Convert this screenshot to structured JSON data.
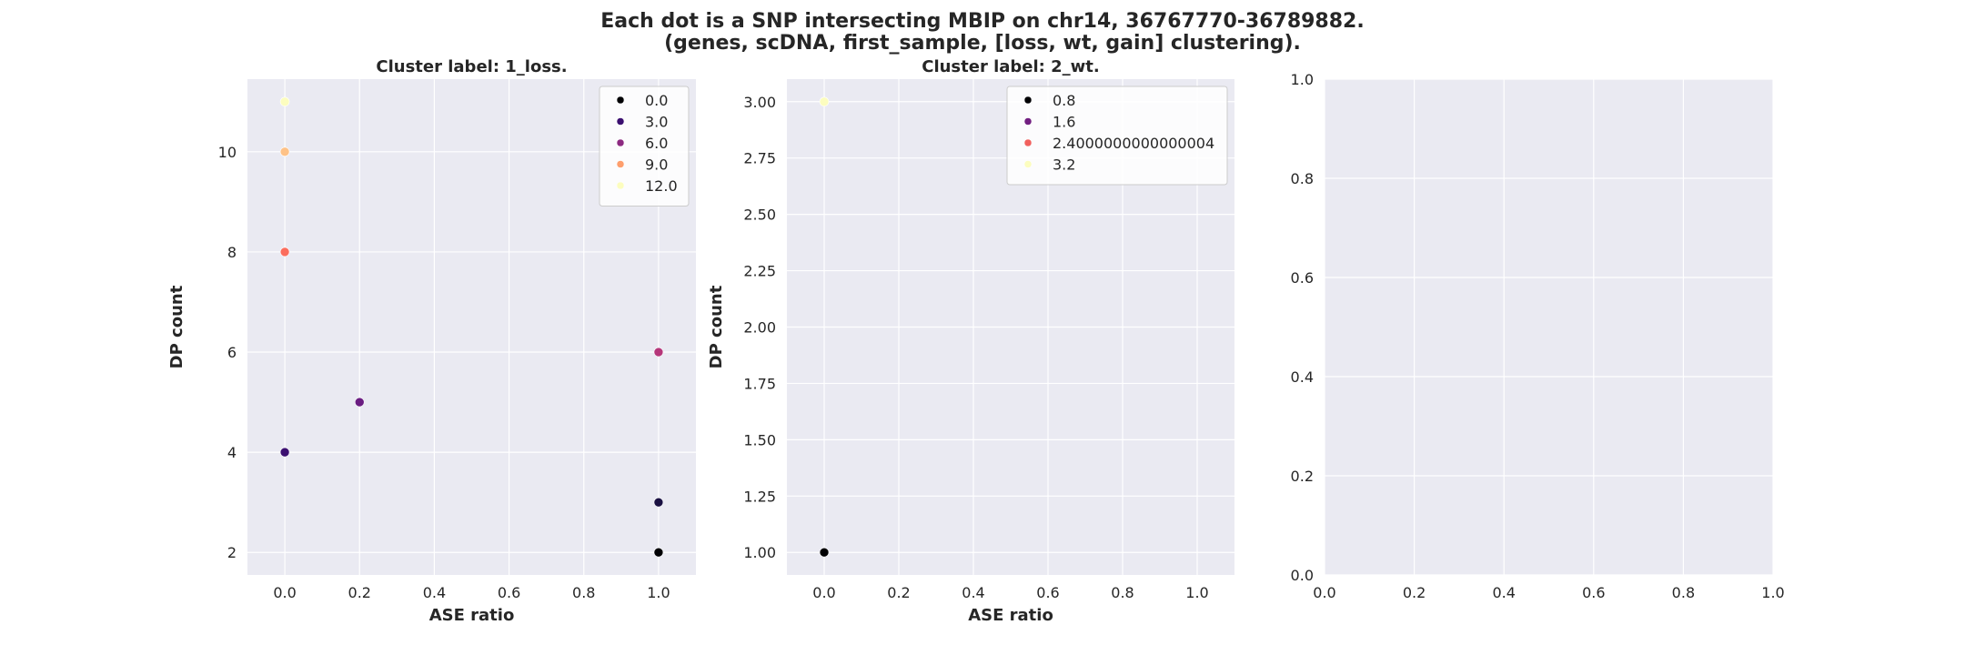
{
  "figure": {
    "title_line1": "Each dot is a SNP intersecting MBIP on chr14, 36767770-36789882.",
    "title_line2": "(genes, scDNA, first_sample, [loss, wt, gain] clustering)."
  },
  "colors": {
    "axes_background": "#eaeaf2",
    "grid": "#ffffff"
  },
  "chart_data": [
    {
      "type": "scatter",
      "title": "Cluster label: 1_loss.",
      "xlabel": "ASE ratio",
      "ylabel": "DP count",
      "xlim": [
        -0.1,
        1.1
      ],
      "ylim": [
        1.55,
        11.45
      ],
      "xticks": [
        "0.0",
        "0.2",
        "0.4",
        "0.6",
        "0.8",
        "1.0"
      ],
      "yticks": [
        "2",
        "4",
        "6",
        "8",
        "10"
      ],
      "grid": true,
      "legend_position": "upper right",
      "legend": [
        {
          "label": "0.0",
          "color": "#000004"
        },
        {
          "label": "3.0",
          "color": "#3b0f70"
        },
        {
          "label": "6.0",
          "color": "#8c2981"
        },
        {
          "label": "9.0",
          "color": "#fe9f6d"
        },
        {
          "label": "12.0",
          "color": "#fcfdbf"
        }
      ],
      "points": [
        {
          "x": 0.0,
          "y": 11,
          "color": "#fcfdbf"
        },
        {
          "x": 0.0,
          "y": 10,
          "color": "#fec287"
        },
        {
          "x": 0.0,
          "y": 8,
          "color": "#fb6d5d"
        },
        {
          "x": 0.0,
          "y": 4,
          "color": "#3b0f70"
        },
        {
          "x": 0.2,
          "y": 5,
          "color": "#6a1c81"
        },
        {
          "x": 1.0,
          "y": 6,
          "color": "#b5367a"
        },
        {
          "x": 1.0,
          "y": 3,
          "color": "#1a1042"
        },
        {
          "x": 1.0,
          "y": 2,
          "color": "#000004"
        }
      ]
    },
    {
      "type": "scatter",
      "title": "Cluster label: 2_wt.",
      "xlabel": "ASE ratio",
      "ylabel": "DP count",
      "xlim": [
        -0.1,
        1.1
      ],
      "ylim": [
        0.9,
        3.1
      ],
      "xticks": [
        "0.0",
        "0.2",
        "0.4",
        "0.6",
        "0.8",
        "1.0"
      ],
      "yticks": [
        "1.00",
        "1.25",
        "1.50",
        "1.75",
        "2.00",
        "2.25",
        "2.50",
        "2.75",
        "3.00"
      ],
      "grid": true,
      "legend_position": "upper right",
      "legend": [
        {
          "label": "0.8",
          "color": "#000004"
        },
        {
          "label": "1.6",
          "color": "#721f81"
        },
        {
          "label": "2.4000000000000004",
          "color": "#f1605d"
        },
        {
          "label": "3.2",
          "color": "#fcfdbf"
        }
      ],
      "points": [
        {
          "x": 0.0,
          "y": 3,
          "color": "#fcfdbf"
        },
        {
          "x": 0.0,
          "y": 1,
          "color": "#000004"
        }
      ]
    },
    {
      "type": "scatter",
      "title": "",
      "xlabel": "",
      "ylabel": "",
      "xlim": [
        0,
        1
      ],
      "ylim": [
        0,
        1
      ],
      "xticks": [
        "0.0",
        "0.2",
        "0.4",
        "0.6",
        "0.8",
        "1.0"
      ],
      "yticks": [
        "0.0",
        "0.2",
        "0.4",
        "0.6",
        "0.8",
        "1.0"
      ],
      "grid": true,
      "legend": [],
      "points": []
    }
  ]
}
